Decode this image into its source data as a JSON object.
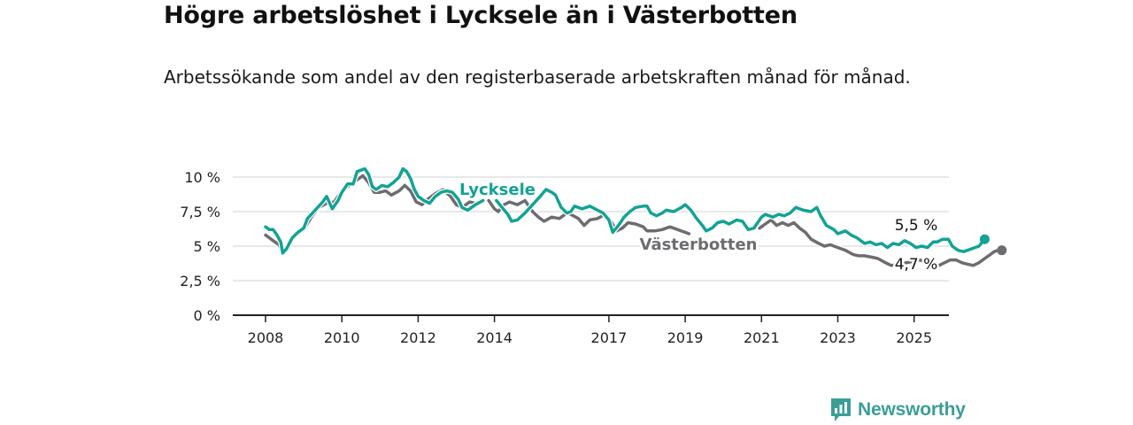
{
  "title": "Högre arbetslöshet i Lycksele än i Västerbotten",
  "subtitle": "Arbetssökande som andel av den registerbaserade arbetskraften månad för månad.",
  "brand": {
    "name": "Newsworthy",
    "icon": "bar-chart-speech-bubble-icon"
  },
  "colors": {
    "lycksele": "#12a394",
    "vasterbotten": "#6e6c70",
    "grid": "#d9d9d9",
    "axis": "#222222",
    "brand": "#3a9e97"
  },
  "chart_data": {
    "type": "line",
    "title": "Högre arbetslöshet i Lycksele än i Västerbotten",
    "ylim": [
      0,
      10.5
    ],
    "xlim": [
      2007.6,
      2026.3
    ],
    "y_ticks": [
      0,
      2.5,
      5,
      7.5,
      10
    ],
    "y_tick_labels": [
      "0 %",
      "2,5 %",
      "5 %",
      "7,5 %",
      "10 %"
    ],
    "x_ticks": [
      2008,
      2010,
      2012,
      2014,
      2017,
      2019,
      2021,
      2023,
      2025
    ],
    "x_tick_labels": [
      "2008",
      "2010",
      "2012",
      "2014",
      "2017",
      "2019",
      "2021",
      "2023",
      "2025"
    ],
    "grid": "horizontal",
    "series": [
      {
        "name": "Lycksele",
        "last_value_label": "5,5 %",
        "points": [
          [
            2008.0,
            6.4
          ],
          [
            2008.1,
            6.2
          ],
          [
            2008.2,
            6.2
          ],
          [
            2008.3,
            5.8
          ],
          [
            2008.4,
            5.3
          ],
          [
            2008.45,
            4.5
          ],
          [
            2008.55,
            4.8
          ],
          [
            2008.7,
            5.6
          ],
          [
            2008.85,
            6.0
          ],
          [
            2009.0,
            6.3
          ],
          [
            2009.1,
            7.0
          ],
          [
            2009.3,
            7.6
          ],
          [
            2009.5,
            8.2
          ],
          [
            2009.6,
            8.6
          ],
          [
            2009.75,
            7.7
          ],
          [
            2009.9,
            8.3
          ],
          [
            2010.0,
            8.9
          ],
          [
            2010.15,
            9.5
          ],
          [
            2010.3,
            9.5
          ],
          [
            2010.4,
            10.4
          ],
          [
            2010.5,
            10.5
          ],
          [
            2010.6,
            10.6
          ],
          [
            2010.7,
            10.2
          ],
          [
            2010.8,
            9.3
          ],
          [
            2010.9,
            9.1
          ],
          [
            2011.05,
            9.4
          ],
          [
            2011.2,
            9.3
          ],
          [
            2011.35,
            9.6
          ],
          [
            2011.5,
            10.0
          ],
          [
            2011.6,
            10.6
          ],
          [
            2011.7,
            10.4
          ],
          [
            2011.8,
            9.9
          ],
          [
            2011.9,
            9.1
          ],
          [
            2012.0,
            8.6
          ],
          [
            2012.15,
            8.3
          ],
          [
            2012.3,
            8.1
          ],
          [
            2012.45,
            8.6
          ],
          [
            2012.6,
            8.9
          ],
          [
            2012.75,
            9.0
          ],
          [
            2012.9,
            8.9
          ],
          [
            2013.05,
            8.4
          ],
          [
            2013.15,
            7.8
          ],
          [
            2013.3,
            7.6
          ],
          [
            2013.5,
            8.0
          ],
          [
            2013.7,
            8.3
          ],
          [
            null,
            null
          ],
          [
            2014.05,
            8.3
          ],
          [
            2014.2,
            7.8
          ],
          [
            2014.35,
            7.3
          ],
          [
            2014.45,
            6.8
          ],
          [
            2014.6,
            6.9
          ],
          [
            2014.8,
            7.4
          ],
          [
            2015.0,
            8.0
          ],
          [
            2015.2,
            8.6
          ],
          [
            2015.35,
            9.1
          ],
          [
            2015.5,
            8.9
          ],
          [
            2015.6,
            8.7
          ],
          [
            2015.75,
            7.8
          ],
          [
            2015.9,
            7.4
          ],
          [
            2016.0,
            7.5
          ],
          [
            2016.1,
            7.9
          ],
          [
            2016.3,
            7.7
          ],
          [
            2016.5,
            7.9
          ],
          [
            2016.7,
            7.6
          ],
          [
            2016.85,
            7.4
          ],
          [
            2017.0,
            6.9
          ],
          [
            2017.1,
            6.0
          ],
          [
            2017.25,
            6.5
          ],
          [
            2017.4,
            7.1
          ],
          [
            2017.55,
            7.5
          ],
          [
            2017.7,
            7.8
          ],
          [
            2017.9,
            7.9
          ],
          [
            2018.0,
            7.9
          ],
          [
            2018.1,
            7.4
          ],
          [
            2018.25,
            7.2
          ],
          [
            2018.4,
            7.4
          ],
          [
            2018.5,
            7.6
          ],
          [
            2018.7,
            7.5
          ],
          [
            2018.9,
            7.8
          ],
          [
            2019.0,
            8.0
          ],
          [
            2019.15,
            7.6
          ],
          [
            2019.3,
            7.0
          ],
          [
            2019.45,
            6.5
          ],
          [
            2019.55,
            6.1
          ],
          [
            2019.7,
            6.3
          ],
          [
            2019.85,
            6.7
          ],
          [
            2020.0,
            6.8
          ],
          [
            2020.15,
            6.6
          ],
          [
            2020.35,
            6.9
          ],
          [
            2020.5,
            6.8
          ],
          [
            2020.65,
            6.2
          ],
          [
            2020.8,
            6.3
          ],
          [
            2021.0,
            7.1
          ],
          [
            2021.1,
            7.3
          ],
          [
            2021.3,
            7.1
          ],
          [
            2021.45,
            7.3
          ],
          [
            2021.6,
            7.2
          ],
          [
            2021.75,
            7.4
          ],
          [
            2021.9,
            7.8
          ],
          [
            2022.0,
            7.7
          ],
          [
            2022.1,
            7.6
          ],
          [
            2022.3,
            7.5
          ],
          [
            2022.45,
            7.8
          ],
          [
            2022.55,
            7.2
          ],
          [
            2022.7,
            6.5
          ],
          [
            2022.9,
            6.2
          ],
          [
            2023.0,
            5.9
          ],
          [
            2023.2,
            6.1
          ],
          [
            2023.35,
            5.8
          ],
          [
            2023.5,
            5.6
          ],
          [
            2023.7,
            5.2
          ],
          [
            2023.85,
            5.3
          ],
          [
            2024.0,
            5.1
          ],
          [
            2024.15,
            5.2
          ],
          [
            2024.3,
            4.9
          ],
          [
            2024.45,
            5.2
          ],
          [
            2024.6,
            5.1
          ],
          [
            2024.75,
            5.4
          ],
          [
            2024.9,
            5.2
          ],
          [
            2025.05,
            4.9
          ],
          [
            2025.2,
            5.0
          ],
          [
            2025.35,
            4.9
          ],
          [
            2025.5,
            5.3
          ],
          [
            2025.6,
            5.3
          ],
          [
            2025.75,
            5.5
          ],
          [
            2025.9,
            5.5
          ],
          [
            2026.0,
            5.0
          ],
          [
            2026.15,
            4.7
          ],
          [
            2026.3,
            4.6
          ],
          [
            2026.5,
            4.8
          ],
          [
            2026.7,
            5.0
          ],
          [
            2026.85,
            5.5
          ]
        ]
      },
      {
        "name": "Västerbotten",
        "last_value_label": "4,7 %",
        "points": [
          [
            2008.0,
            5.8
          ],
          [
            2008.2,
            5.4
          ],
          [
            2008.35,
            5.1
          ],
          [
            2008.45,
            4.6
          ],
          [
            2008.6,
            5.1
          ],
          [
            2008.8,
            5.8
          ],
          [
            2009.0,
            6.2
          ],
          [
            2009.2,
            7.1
          ],
          [
            2009.4,
            7.8
          ],
          [
            2009.6,
            8.1
          ],
          [
            2009.8,
            8.2
          ],
          [
            2010.0,
            9.0
          ],
          [
            2010.2,
            9.4
          ],
          [
            2010.4,
            9.8
          ],
          [
            2010.55,
            10.1
          ],
          [
            2010.7,
            9.6
          ],
          [
            2010.85,
            8.9
          ],
          [
            2011.0,
            8.9
          ],
          [
            2011.15,
            9.0
          ],
          [
            2011.3,
            8.7
          ],
          [
            2011.5,
            9.0
          ],
          [
            2011.65,
            9.4
          ],
          [
            2011.8,
            9.0
          ],
          [
            2011.95,
            8.2
          ],
          [
            2012.1,
            8.0
          ],
          [
            2012.25,
            8.4
          ],
          [
            2012.45,
            8.8
          ],
          [
            2012.65,
            9.1
          ],
          [
            2012.85,
            8.6
          ],
          [
            2013.0,
            8.0
          ],
          [
            2013.15,
            7.8
          ],
          [
            2013.35,
            8.2
          ],
          [
            2013.5,
            8.1
          ],
          [
            null,
            null
          ],
          [
            2013.85,
            8.3
          ],
          [
            2014.0,
            7.7
          ],
          [
            2014.1,
            7.5
          ],
          [
            2014.25,
            8.0
          ],
          [
            2014.4,
            8.2
          ],
          [
            2014.6,
            8.0
          ],
          [
            2014.8,
            8.3
          ],
          [
            2015.0,
            7.5
          ],
          [
            2015.15,
            7.1
          ],
          [
            2015.3,
            6.8
          ],
          [
            2015.5,
            7.1
          ],
          [
            2015.7,
            7.0
          ],
          [
            2015.9,
            7.4
          ],
          [
            2016.0,
            7.3
          ],
          [
            2016.2,
            7.0
          ],
          [
            2016.35,
            6.5
          ],
          [
            2016.5,
            6.9
          ],
          [
            2016.7,
            7.0
          ],
          [
            2016.9,
            7.3
          ],
          [
            2017.05,
            6.8
          ],
          [
            2017.2,
            6.1
          ],
          [
            2017.35,
            6.3
          ],
          [
            2017.5,
            6.7
          ],
          [
            2017.7,
            6.6
          ],
          [
            2017.9,
            6.4
          ],
          [
            2018.0,
            6.1
          ],
          [
            2018.2,
            6.1
          ],
          [
            2018.4,
            6.2
          ],
          [
            2018.6,
            6.4
          ],
          [
            2018.8,
            6.2
          ],
          [
            2019.0,
            6.0
          ],
          [
            2019.1,
            5.9
          ],
          [
            null,
            null
          ],
          [
            2020.95,
            6.3
          ],
          [
            2021.1,
            6.6
          ],
          [
            2021.25,
            6.9
          ],
          [
            2021.4,
            6.5
          ],
          [
            2021.55,
            6.7
          ],
          [
            2021.7,
            6.5
          ],
          [
            2021.85,
            6.7
          ],
          [
            2022.0,
            6.3
          ],
          [
            2022.15,
            6.0
          ],
          [
            2022.3,
            5.5
          ],
          [
            2022.5,
            5.2
          ],
          [
            2022.65,
            5.0
          ],
          [
            2022.8,
            5.1
          ],
          [
            2023.0,
            4.9
          ],
          [
            2023.2,
            4.7
          ],
          [
            2023.4,
            4.4
          ],
          [
            2023.55,
            4.3
          ],
          [
            2023.7,
            4.3
          ],
          [
            2023.9,
            4.2
          ],
          [
            2024.05,
            4.1
          ],
          [
            2024.25,
            3.8
          ],
          [
            2024.4,
            3.6
          ],
          [
            2024.6,
            3.7
          ],
          [
            2024.8,
            3.8
          ],
          [
            2025.0,
            3.9
          ],
          [
            2025.15,
            4.0
          ],
          [
            2025.35,
            3.8
          ],
          [
            2025.5,
            3.6
          ],
          [
            2025.65,
            3.6
          ],
          [
            2025.8,
            3.8
          ],
          [
            2025.95,
            4.0
          ],
          [
            2026.1,
            4.0
          ],
          [
            2026.25,
            3.8
          ],
          [
            2026.4,
            3.7
          ],
          [
            2026.55,
            3.6
          ],
          [
            2026.7,
            3.8
          ],
          [
            2026.85,
            4.1
          ],
          [
            2027.0,
            4.4
          ],
          [
            2027.1,
            4.6
          ],
          [
            2027.2,
            4.7
          ],
          [
            2027.3,
            4.7
          ]
        ]
      }
    ]
  }
}
